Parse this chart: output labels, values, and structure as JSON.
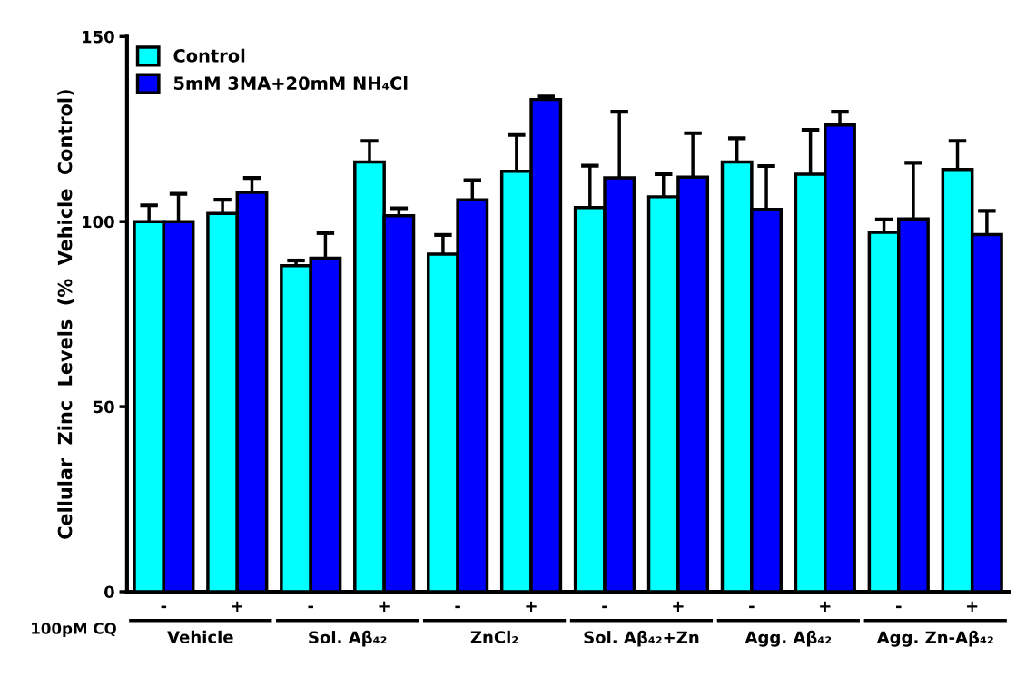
{
  "chart_data": {
    "type": "bar",
    "ylabel": "Cellular  Zinc  Levels  (%  Vehicle  Control)",
    "categories": [
      "-",
      "+",
      "-",
      "+",
      "-",
      "+",
      "-",
      "+",
      "-",
      "+",
      "-",
      "+"
    ],
    "series": [
      {
        "name": "Control",
        "color": "#00ffff",
        "values": [
          100,
          102.2,
          88.1,
          116.1,
          91.2,
          113.6,
          103.8,
          106.7,
          116.1,
          112.8,
          97.1,
          114.1
        ],
        "errors": [
          [
            100,
            104.4
          ],
          [
            102.2,
            105.9
          ],
          [
            88.1,
            89.5
          ],
          [
            116.1,
            121.8
          ],
          [
            91.2,
            96.4
          ],
          [
            113.6,
            123.4
          ],
          [
            103.8,
            115.1
          ],
          [
            106.7,
            112.8
          ],
          [
            116.1,
            122.5
          ],
          [
            112.8,
            124.8
          ],
          [
            97.1,
            100.6
          ],
          [
            114.1,
            121.8
          ]
        ]
      },
      {
        "name": "5mM 3MA+20mM NH₄Cl",
        "color": "#0000ff",
        "values": [
          100,
          107.9,
          90.1,
          101.6,
          105.9,
          133.0,
          111.8,
          112.0,
          103.3,
          126.1,
          100.7,
          96.5
        ],
        "errors": [
          [
            100,
            107.5
          ],
          [
            107.9,
            111.8
          ],
          [
            90.1,
            96.9
          ],
          [
            101.6,
            103.6
          ],
          [
            105.9,
            111.2
          ],
          [
            133.0,
            133.8
          ],
          [
            111.8,
            129.7
          ],
          [
            112.0,
            123.9
          ],
          [
            103.3,
            115.0
          ],
          [
            126.1,
            129.7
          ],
          [
            100.7,
            115.9
          ],
          [
            96.5,
            102.9
          ]
        ]
      }
    ],
    "ylim": [
      0,
      150
    ],
    "yticks": [
      0,
      50,
      100,
      150
    ],
    "grid": false,
    "legend": "top left",
    "annotations": [
      "100pM CQ",
      "Vehicle",
      "Sol. Aβ₄₂",
      "ZnCl₂",
      "Sol. Aβ₄₂+Zn",
      "Agg. Aβ₄₂",
      "Agg. Zn-Aβ₄₂"
    ]
  }
}
